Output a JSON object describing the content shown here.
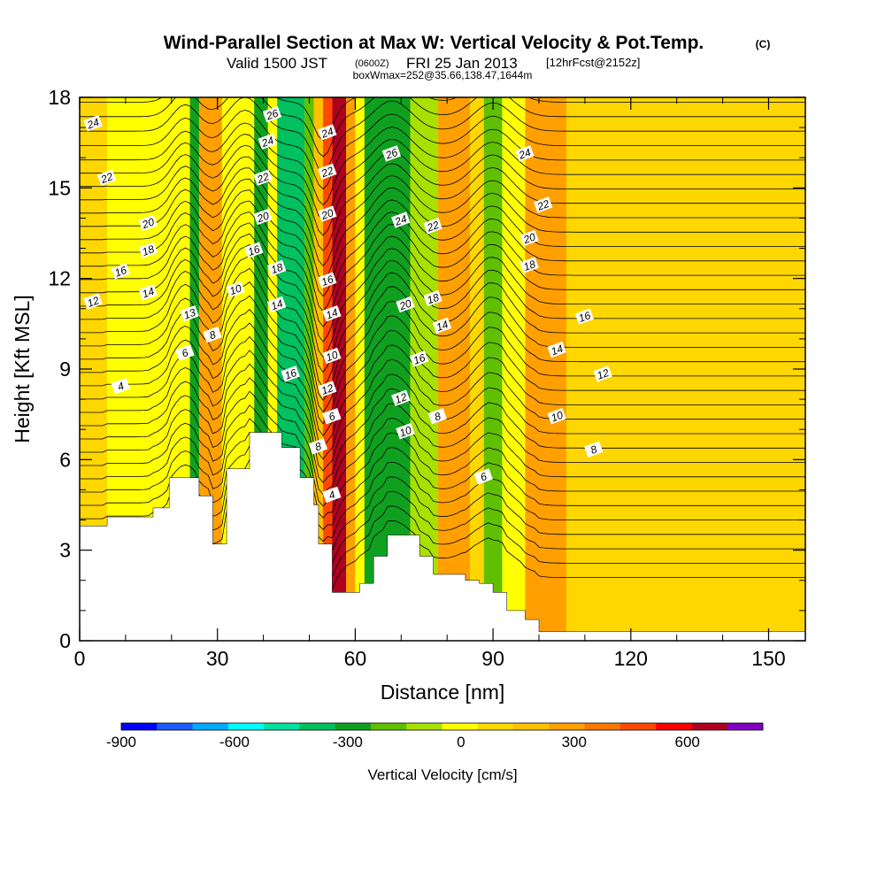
{
  "header": {
    "title_main": "Wind-Parallel Section at Max W: Vertical Velocity & Pot.Temp.",
    "title_mark": "(C)",
    "sub_prefix": "Valid 1500 JST",
    "sub_zulu": "(0600Z)",
    "sub_date": "FRI 25 Jan 2013",
    "sub_fcst": "[12hrFcst@2152z]",
    "sub_box": "boxWmax=252@35.66,138.47,1644m"
  },
  "chart_data": {
    "type": "heatmap",
    "xlabel": "Distance [nm]",
    "ylabel": "Height [Kft MSL]",
    "xlim": [
      0,
      158
    ],
    "ylim": [
      0,
      18
    ],
    "x_ticks": [
      0,
      30,
      60,
      90,
      120,
      150
    ],
    "y_ticks": [
      0,
      3,
      6,
      9,
      12,
      15,
      18
    ],
    "x_tick_labels": [
      "0",
      "30",
      "60",
      "90",
      "120",
      "150"
    ],
    "y_tick_labels": [
      "0",
      "3",
      "6",
      "9",
      "12",
      "15",
      "18"
    ],
    "colorbar": {
      "label": "Vertical Velocity [cm/s]",
      "tick_values": [
        -900,
        -600,
        -300,
        0,
        300,
        600
      ],
      "tick_labels": [
        "-900",
        "-600",
        "-300",
        "0",
        "300",
        "600"
      ],
      "range": [
        -900,
        800
      ],
      "colors": [
        "#0000ff",
        "#1a5cff",
        "#00aaff",
        "#00ffff",
        "#00e0a0",
        "#00c060",
        "#10a020",
        "#60c000",
        "#a8e000",
        "#ffff00",
        "#ffd700",
        "#ffc000",
        "#ffa000",
        "#ff7800",
        "#ff4800",
        "#ff0000",
        "#b00020",
        "#8000c0"
      ]
    },
    "terrain_profile": [
      [
        0,
        3.8
      ],
      [
        6,
        3.8
      ],
      [
        6,
        4.1
      ],
      [
        16,
        4.1
      ],
      [
        16,
        4.4
      ],
      [
        19.5,
        4.4
      ],
      [
        19.5,
        5.4
      ],
      [
        26,
        5.4
      ],
      [
        26,
        4.8
      ],
      [
        29,
        4.8
      ],
      [
        29,
        3.2
      ],
      [
        32,
        3.2
      ],
      [
        32,
        5.7
      ],
      [
        37,
        5.7
      ],
      [
        37,
        6.9
      ],
      [
        44,
        6.9
      ],
      [
        44,
        6.4
      ],
      [
        48,
        6.4
      ],
      [
        48,
        5.4
      ],
      [
        51,
        5.4
      ],
      [
        51,
        4.5
      ],
      [
        52,
        4.5
      ],
      [
        52,
        3.2
      ],
      [
        55,
        3.2
      ],
      [
        55,
        1.6
      ],
      [
        61,
        1.6
      ],
      [
        61,
        1.9
      ],
      [
        64,
        1.9
      ],
      [
        64,
        2.8
      ],
      [
        67,
        2.8
      ],
      [
        67,
        3.5
      ],
      [
        74,
        3.5
      ],
      [
        74,
        2.8
      ],
      [
        77,
        2.8
      ],
      [
        77,
        2.2
      ],
      [
        84,
        2.2
      ],
      [
        84,
        2.0
      ],
      [
        87,
        2.0
      ],
      [
        87,
        1.9
      ],
      [
        90,
        1.9
      ],
      [
        90,
        1.6
      ],
      [
        93,
        1.6
      ],
      [
        93,
        1.0
      ],
      [
        97,
        1.0
      ],
      [
        97,
        0.7
      ],
      [
        100,
        0.7
      ],
      [
        100,
        0.3
      ],
      [
        158,
        0.3
      ]
    ],
    "velocity_columns": [
      {
        "x0": 0,
        "x1": 6,
        "value": 100
      },
      {
        "x0": 6,
        "x1": 24,
        "value": 0
      },
      {
        "x0": 24,
        "x1": 26,
        "value": -250
      },
      {
        "x0": 26,
        "x1": 31,
        "value": 250
      },
      {
        "x0": 31,
        "x1": 38,
        "value": 0
      },
      {
        "x0": 38,
        "x1": 41,
        "value": -250
      },
      {
        "x0": 41,
        "x1": 43,
        "value": 0
      },
      {
        "x0": 43,
        "x1": 49,
        "value": -350
      },
      {
        "x0": 49,
        "x1": 51,
        "value": -150
      },
      {
        "x0": 51,
        "x1": 53,
        "value": 150
      },
      {
        "x0": 53,
        "x1": 55,
        "value": 450
      },
      {
        "x0": 55,
        "x1": 58,
        "value": 700
      },
      {
        "x0": 58,
        "x1": 60,
        "value": 300
      },
      {
        "x0": 60,
        "x1": 62,
        "value": 0
      },
      {
        "x0": 62,
        "x1": 72,
        "value": -250
      },
      {
        "x0": 72,
        "x1": 78,
        "value": -100
      },
      {
        "x0": 78,
        "x1": 85,
        "value": 300
      },
      {
        "x0": 85,
        "x1": 88,
        "value": 100
      },
      {
        "x0": 88,
        "x1": 92,
        "value": -150
      },
      {
        "x0": 92,
        "x1": 97,
        "value": 0
      },
      {
        "x0": 97,
        "x1": 106,
        "value": 250
      },
      {
        "x0": 106,
        "x1": 158,
        "value": 50
      }
    ],
    "contour_labels": [
      {
        "x": 3,
        "y": 17.1,
        "text": "24"
      },
      {
        "x": 6,
        "y": 15.3,
        "text": "22"
      },
      {
        "x": 15,
        "y": 13.8,
        "text": "20"
      },
      {
        "x": 15,
        "y": 12.9,
        "text": "18"
      },
      {
        "x": 9,
        "y": 12.2,
        "text": "16"
      },
      {
        "x": 15,
        "y": 11.5,
        "text": "14"
      },
      {
        "x": 3,
        "y": 11.2,
        "text": "12"
      },
      {
        "x": 24,
        "y": 10.8,
        "text": "13"
      },
      {
        "x": 29,
        "y": 10.1,
        "text": "8"
      },
      {
        "x": 23,
        "y": 9.5,
        "text": "6"
      },
      {
        "x": 9,
        "y": 8.4,
        "text": "4"
      },
      {
        "x": 34,
        "y": 11.6,
        "text": "10"
      },
      {
        "x": 38,
        "y": 12.9,
        "text": "16"
      },
      {
        "x": 42,
        "y": 17.4,
        "text": "26"
      },
      {
        "x": 41,
        "y": 16.5,
        "text": "24"
      },
      {
        "x": 40,
        "y": 15.3,
        "text": "22"
      },
      {
        "x": 40,
        "y": 14.0,
        "text": "20"
      },
      {
        "x": 43,
        "y": 12.3,
        "text": "18"
      },
      {
        "x": 43,
        "y": 11.1,
        "text": "14"
      },
      {
        "x": 46,
        "y": 8.8,
        "text": "16"
      },
      {
        "x": 54,
        "y": 16.8,
        "text": "24"
      },
      {
        "x": 54,
        "y": 15.5,
        "text": "22"
      },
      {
        "x": 54,
        "y": 14.1,
        "text": "20"
      },
      {
        "x": 54,
        "y": 11.9,
        "text": "16"
      },
      {
        "x": 55,
        "y": 10.8,
        "text": "14"
      },
      {
        "x": 55,
        "y": 9.4,
        "text": "10"
      },
      {
        "x": 54,
        "y": 8.3,
        "text": "12"
      },
      {
        "x": 55,
        "y": 7.4,
        "text": "6"
      },
      {
        "x": 52,
        "y": 6.4,
        "text": "8"
      },
      {
        "x": 55,
        "y": 4.8,
        "text": "4"
      },
      {
        "x": 68,
        "y": 16.1,
        "text": "26"
      },
      {
        "x": 70,
        "y": 13.9,
        "text": "24"
      },
      {
        "x": 77,
        "y": 13.7,
        "text": "22"
      },
      {
        "x": 71,
        "y": 11.1,
        "text": "20"
      },
      {
        "x": 77,
        "y": 11.3,
        "text": "18"
      },
      {
        "x": 79,
        "y": 10.4,
        "text": "14"
      },
      {
        "x": 74,
        "y": 9.3,
        "text": "16"
      },
      {
        "x": 70,
        "y": 8.0,
        "text": "12"
      },
      {
        "x": 71,
        "y": 6.9,
        "text": "10"
      },
      {
        "x": 78,
        "y": 7.4,
        "text": "8"
      },
      {
        "x": 88,
        "y": 5.4,
        "text": "6"
      },
      {
        "x": 97,
        "y": 16.1,
        "text": "24"
      },
      {
        "x": 101,
        "y": 14.4,
        "text": "22"
      },
      {
        "x": 98,
        "y": 13.3,
        "text": "20"
      },
      {
        "x": 98,
        "y": 12.4,
        "text": "18"
      },
      {
        "x": 110,
        "y": 10.7,
        "text": "16"
      },
      {
        "x": 104,
        "y": 9.6,
        "text": "14"
      },
      {
        "x": 114,
        "y": 8.8,
        "text": "12"
      },
      {
        "x": 104,
        "y": 7.4,
        "text": "10"
      },
      {
        "x": 112,
        "y": 6.3,
        "text": "8"
      }
    ]
  }
}
